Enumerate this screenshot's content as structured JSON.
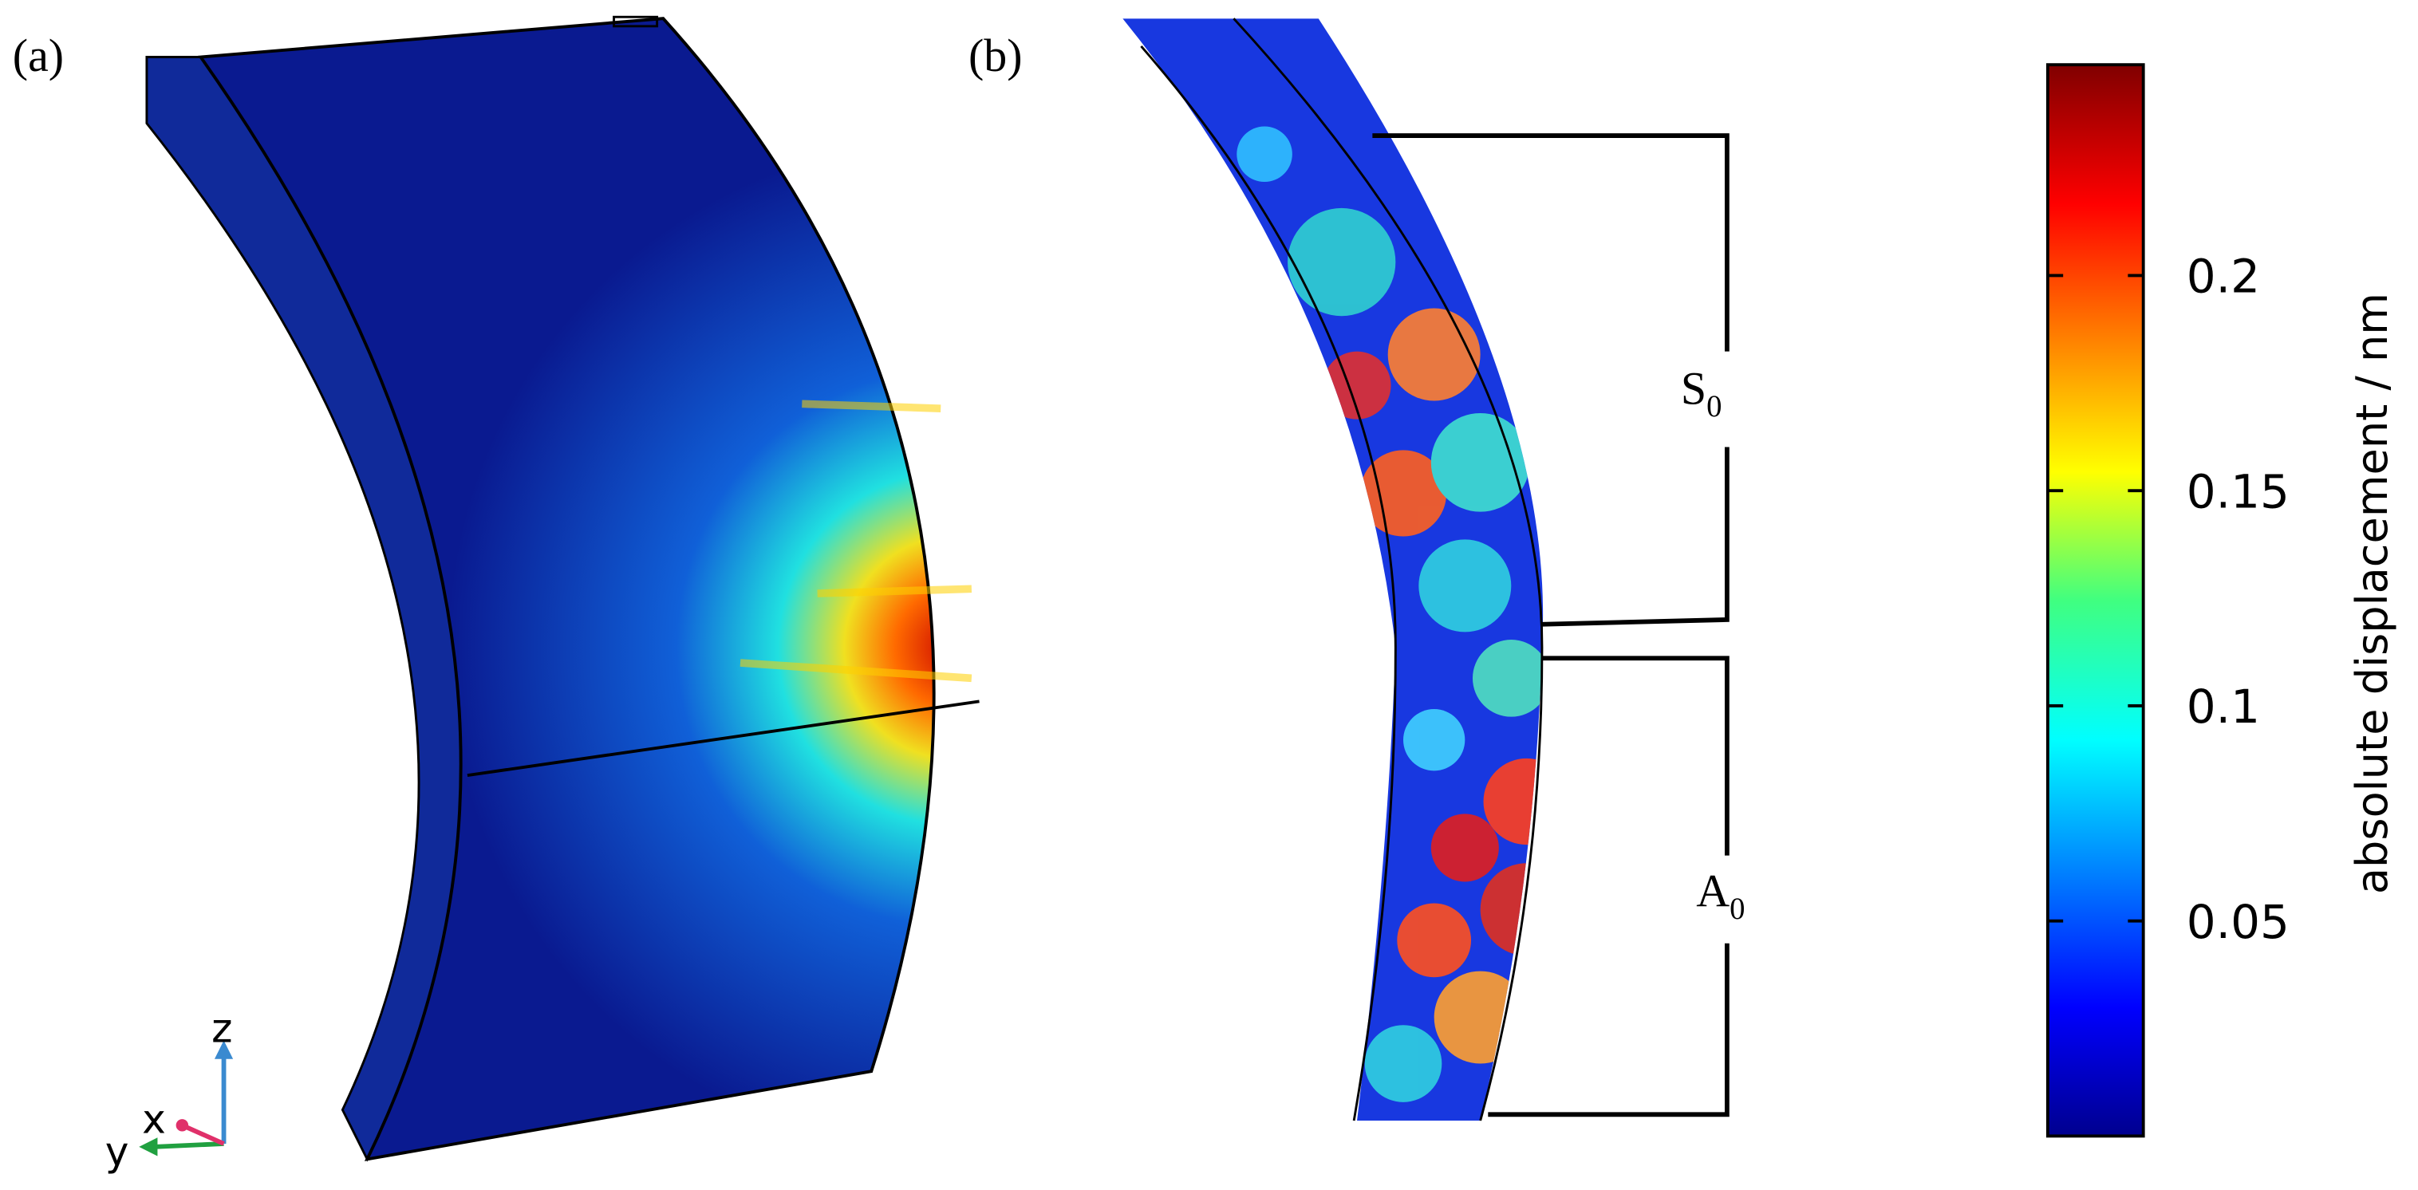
{
  "panel_a": {
    "label": "(a)",
    "axes": {
      "x": "x",
      "y": "y",
      "z": "z"
    }
  },
  "panel_b": {
    "label": "(b)",
    "regions": [
      {
        "name": "S",
        "subscript": "0"
      },
      {
        "name": "A",
        "subscript": "0"
      }
    ]
  },
  "colorbar": {
    "label": "absolute displacement / nm",
    "lim": [
      0,
      0.249
    ],
    "ticks": [
      0.05,
      0.1,
      0.15,
      0.2
    ]
  }
}
